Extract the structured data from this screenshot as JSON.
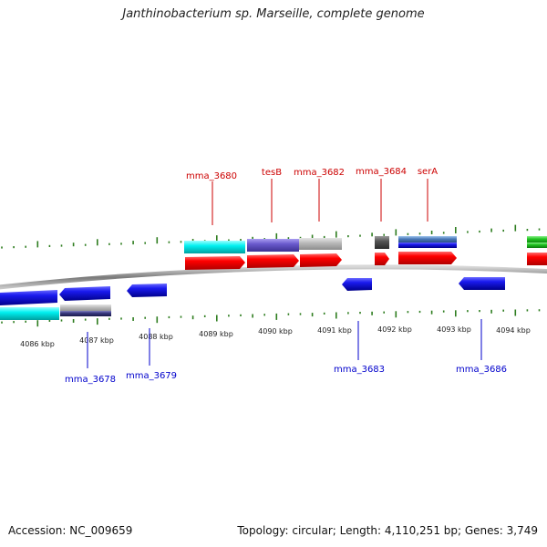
{
  "title": "Janthinobacterium sp. Marseille, complete genome",
  "footer": {
    "accession": "Accession: NC_009659",
    "summary": "Topology: circular; Length: 4,110,251 bp; Genes: 3,749"
  },
  "colors": {
    "backbone": "#8a8a8a",
    "tick": "#2e7d1f",
    "label_top": "#cc0000",
    "label_bottom": "#0000cc",
    "forward_cds": "#ee0000",
    "reverse_cds": "#0000dd",
    "cyan": "#00e6e6",
    "purple": "#6a5acd",
    "gray": "#b4b4b4",
    "dark_gray": "#555555",
    "steel_blue": "#4a78b8",
    "green": "#22c422"
  },
  "axis": {
    "tick_labels": [
      "4086 kbp",
      "4087 kbp",
      "4088 kbp",
      "4089 kbp",
      "4090 kbp",
      "4091 kbp",
      "4092 kbp",
      "4093 kbp",
      "4094 kbp"
    ]
  },
  "gene_labels_top": [
    "mma_3680",
    "tesB",
    "mma_3682",
    "mma_3684",
    "serA"
  ],
  "gene_labels_bottom": [
    "mma_3678",
    "mma_3679",
    "mma_3683",
    "mma_3686"
  ]
}
